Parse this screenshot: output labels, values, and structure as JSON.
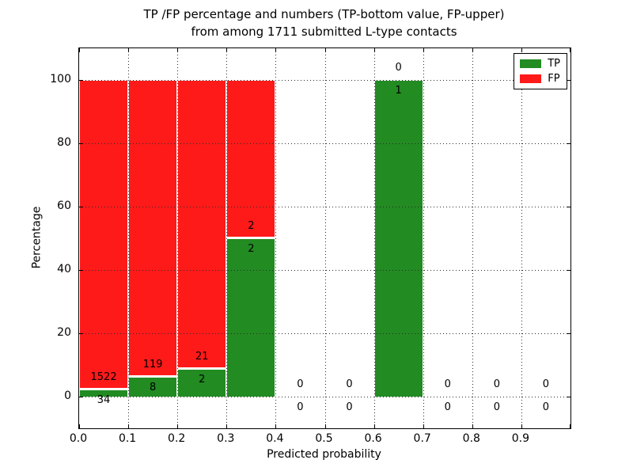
{
  "figure": {
    "title_line1": "TP /FP percentage and numbers (TP-bottom value, FP-upper)",
    "title_line2": "from among 1711 submitted L-type contacts"
  },
  "chart_data": {
    "type": "bar",
    "stacked": true,
    "normalized": "percent",
    "title": "TP /FP percentage and numbers (TP-bottom value, FP-upper) from among 1711 submitted L-type contacts",
    "xlabel": "Predicted probability",
    "ylabel": "Percentage",
    "xlim": [
      0.0,
      1.0
    ],
    "ylim": [
      -10,
      110
    ],
    "grid": true,
    "grid_style": "dotted",
    "x_tick_labels": [
      "0.0",
      "0.1",
      "0.2",
      "0.3",
      "0.4",
      "0.5",
      "0.6",
      "0.7",
      "0.8",
      "0.9"
    ],
    "y_tick_values": [
      0,
      20,
      40,
      60,
      80,
      100
    ],
    "categories": [
      "0.0-0.1",
      "0.1-0.2",
      "0.2-0.3",
      "0.3-0.4",
      "0.4-0.5",
      "0.5-0.6",
      "0.6-0.7",
      "0.7-0.8",
      "0.8-0.9",
      "0.9-1.0"
    ],
    "series": [
      {
        "name": "TP",
        "color": "#228B22",
        "counts": [
          34,
          8,
          2,
          2,
          0,
          0,
          1,
          0,
          0,
          0
        ]
      },
      {
        "name": "FP",
        "color": "#FF1A1A",
        "counts": [
          1522,
          119,
          21,
          2,
          0,
          0,
          0,
          0,
          0,
          0
        ]
      }
    ],
    "tp_percent_by_bin": [
      2.19,
      6.3,
      8.7,
      50.0,
      0,
      0,
      100.0,
      0,
      0,
      0
    ],
    "total_contacts": 1711,
    "legend": {
      "position": "upper right",
      "entries": [
        "TP",
        "FP"
      ]
    }
  },
  "colors": {
    "tp": "#228B22",
    "fp": "#FF1A1A",
    "grid": "#2b2b2b",
    "axis": "#000000",
    "background": "#ffffff",
    "text": "#000000"
  }
}
